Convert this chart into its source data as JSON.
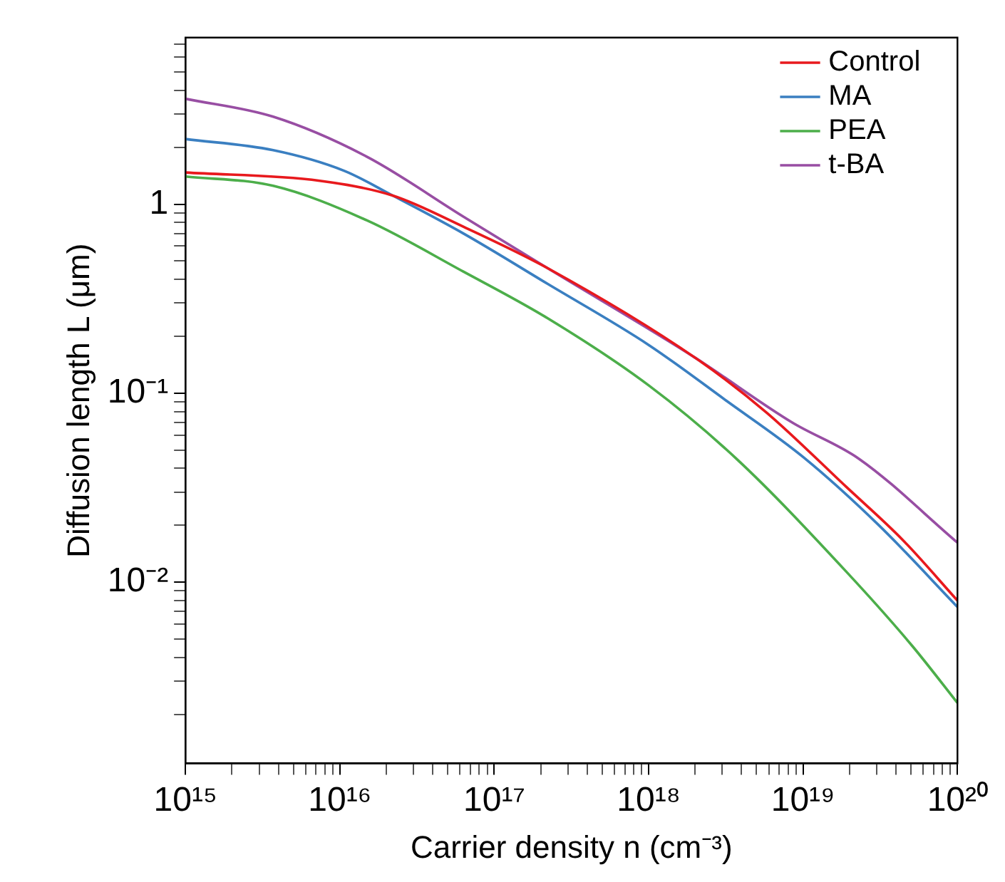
{
  "chart_data": {
    "type": "line",
    "xlabel": "Carrier density n (cm⁻³)",
    "ylabel": "Diffusion length L (μm)",
    "log": "xy",
    "grid": false,
    "legend": "top right",
    "marker": "none",
    "line_style": "solid",
    "xlim": [
      1000000000000000.0,
      1e+20
    ],
    "ylim": [
      0.0011,
      7.6
    ],
    "xticks": [
      {
        "value": 1000000000000000.0,
        "label": "10¹⁵"
      },
      {
        "value": 2000000000000000.0,
        "label": null
      },
      {
        "value": 3000000000000000.0,
        "label": null
      },
      {
        "value": 4000000000000000.0,
        "label": null
      },
      {
        "value": 5000000000000000.0,
        "label": null
      },
      {
        "value": 6000000000000000.0,
        "label": null
      },
      {
        "value": 7000000000000000.0,
        "label": null
      },
      {
        "value": 8000000000000000.0,
        "label": null
      },
      {
        "value": 9000000000000000.0,
        "label": null
      },
      {
        "value": 1e+16,
        "label": "10¹⁶"
      },
      {
        "value": 2e+16,
        "label": null
      },
      {
        "value": 3e+16,
        "label": null
      },
      {
        "value": 4e+16,
        "label": null
      },
      {
        "value": 5e+16,
        "label": null
      },
      {
        "value": 6e+16,
        "label": null
      },
      {
        "value": 7e+16,
        "label": null
      },
      {
        "value": 8e+16,
        "label": null
      },
      {
        "value": 9e+16,
        "label": null
      },
      {
        "value": 1e+17,
        "label": "10¹⁷"
      },
      {
        "value": 2e+17,
        "label": null
      },
      {
        "value": 3e+17,
        "label": null
      },
      {
        "value": 4e+17,
        "label": null
      },
      {
        "value": 5e+17,
        "label": null
      },
      {
        "value": 6e+17,
        "label": null
      },
      {
        "value": 7e+17,
        "label": null
      },
      {
        "value": 8e+17,
        "label": null
      },
      {
        "value": 9e+17,
        "label": null
      },
      {
        "value": 1e+18,
        "label": "10¹⁸"
      },
      {
        "value": 2e+18,
        "label": null
      },
      {
        "value": 3e+18,
        "label": null
      },
      {
        "value": 4e+18,
        "label": null
      },
      {
        "value": 5e+18,
        "label": null
      },
      {
        "value": 6e+18,
        "label": null
      },
      {
        "value": 7e+18,
        "label": null
      },
      {
        "value": 8e+18,
        "label": null
      },
      {
        "value": 9e+18,
        "label": null
      },
      {
        "value": 1e+19,
        "label": "10¹⁹"
      },
      {
        "value": 2e+19,
        "label": null
      },
      {
        "value": 3e+19,
        "label": null
      },
      {
        "value": 4e+19,
        "label": null
      },
      {
        "value": 5e+19,
        "label": null
      },
      {
        "value": 6e+19,
        "label": null
      },
      {
        "value": 7e+19,
        "label": null
      },
      {
        "value": 8e+19,
        "label": null
      },
      {
        "value": 9e+19,
        "label": null
      },
      {
        "value": 1e+20,
        "label": "10²⁰"
      }
    ],
    "yticks": [
      {
        "value": 0.002,
        "label": null
      },
      {
        "value": 0.003,
        "label": null
      },
      {
        "value": 0.004,
        "label": null
      },
      {
        "value": 0.005,
        "label": null
      },
      {
        "value": 0.006,
        "label": null
      },
      {
        "value": 0.007,
        "label": null
      },
      {
        "value": 0.008,
        "label": null
      },
      {
        "value": 0.009,
        "label": null
      },
      {
        "value": 0.01,
        "label": "10⁻²"
      },
      {
        "value": 0.02,
        "label": null
      },
      {
        "value": 0.03,
        "label": null
      },
      {
        "value": 0.04,
        "label": null
      },
      {
        "value": 0.05,
        "label": null
      },
      {
        "value": 0.06,
        "label": null
      },
      {
        "value": 0.07,
        "label": null
      },
      {
        "value": 0.08,
        "label": null
      },
      {
        "value": 0.09,
        "label": null
      },
      {
        "value": 0.1,
        "label": "10⁻¹"
      },
      {
        "value": 0.2,
        "label": null
      },
      {
        "value": 0.3,
        "label": null
      },
      {
        "value": 0.4,
        "label": null
      },
      {
        "value": 0.5,
        "label": null
      },
      {
        "value": 0.6,
        "label": null
      },
      {
        "value": 0.7,
        "label": null
      },
      {
        "value": 0.8,
        "label": null
      },
      {
        "value": 0.9,
        "label": null
      },
      1,
      {
        "value": 2,
        "label": null
      },
      {
        "value": 3,
        "label": null
      },
      {
        "value": 4,
        "label": null
      },
      {
        "value": 5,
        "label": null
      },
      {
        "value": 6,
        "label": null
      },
      {
        "value": 7,
        "label": null
      }
    ],
    "series": [
      {
        "name": "Control",
        "color": "#e8191d",
        "x": [
          1000000000000000.0,
          7400000000000000.0,
          2.2e+16,
          6.3e+16,
          2.2e+17,
          2e+18,
          5.8e+18,
          1.9e+19,
          4.4e+19,
          1e+20
        ],
        "values": [
          1.47,
          1.33,
          1.11,
          0.76,
          0.46,
          0.154,
          0.079,
          0.032,
          0.0168,
          0.008
        ]
      },
      {
        "name": "MA",
        "color": "#3a7fc1",
        "x": [
          1000000000000000.0,
          3700000000000000.0,
          1.07e+16,
          2.2e+16,
          6.3e+16,
          2.2e+17,
          1e+18,
          3.2e+18,
          1e+19,
          3.1e+19,
          1e+20
        ],
        "values": [
          2.21,
          1.93,
          1.5,
          1.11,
          0.7,
          0.38,
          0.18,
          0.091,
          0.046,
          0.02,
          0.0074
        ]
      },
      {
        "name": "PEA",
        "color": "#4cae4a",
        "x": [
          1000000000000000.0,
          3700000000000000.0,
          1.5e+16,
          6.3e+16,
          2.2e+17,
          1e+18,
          3.7e+18,
          1.9e+19,
          5.1e+19,
          1e+20
        ],
        "values": [
          1.4,
          1.25,
          0.82,
          0.44,
          0.25,
          0.11,
          0.045,
          0.0114,
          0.0046,
          0.0023
        ]
      },
      {
        "name": "t-BA",
        "color": "#984ea3",
        "x": [
          1000000000000000.0,
          3700000000000000.0,
          1.5e+16,
          6.3e+16,
          2.2e+17,
          2e+18,
          8.5e+18,
          2.3e+19,
          1e+20
        ],
        "values": [
          3.61,
          2.9,
          1.78,
          0.86,
          0.46,
          0.154,
          0.07,
          0.045,
          0.0162
        ]
      }
    ]
  }
}
